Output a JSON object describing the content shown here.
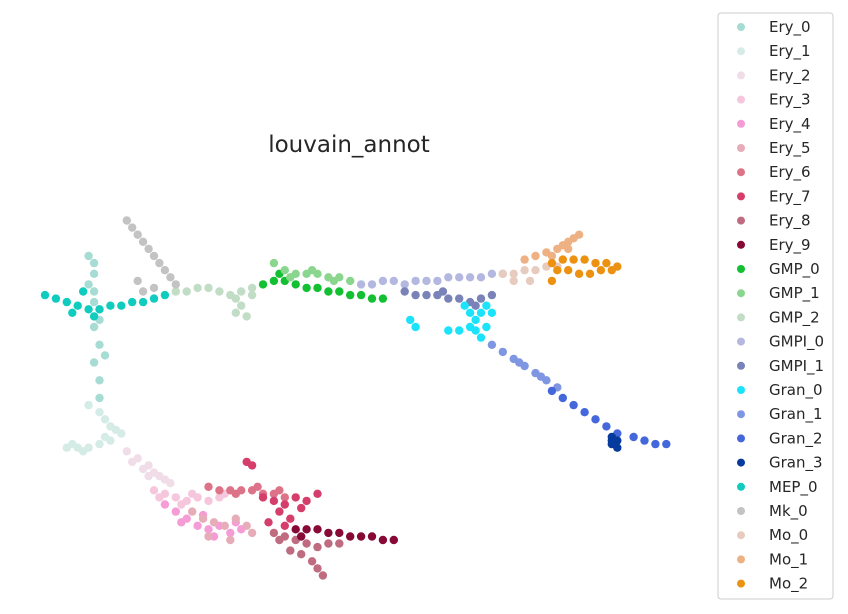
{
  "chart_data": {
    "type": "scatter",
    "title": "louvain_annot",
    "xlabel": "",
    "ylabel": "",
    "grid": false,
    "axes_visible": false,
    "legend_position": "right",
    "series": [
      {
        "name": "Ery_0",
        "color": "#a6dcd4",
        "points": [
          [
            8,
            20
          ],
          [
            9,
            25
          ],
          [
            9,
            30
          ],
          [
            10,
            35
          ],
          [
            9,
            40
          ],
          [
            10,
            45
          ],
          [
            9,
            50
          ],
          [
            10,
            55
          ],
          [
            8,
            28
          ],
          [
            10,
            38
          ],
          [
            9,
            33
          ],
          [
            11,
            48
          ],
          [
            10,
            60
          ],
          [
            9,
            22
          ]
        ]
      },
      {
        "name": "Ery_1",
        "color": "#d4ebe6",
        "points": [
          [
            8,
            62
          ],
          [
            10,
            64
          ],
          [
            11,
            66
          ],
          [
            12,
            68
          ],
          [
            14,
            70
          ],
          [
            12,
            72
          ],
          [
            10,
            73
          ],
          [
            8,
            74
          ],
          [
            6,
            74
          ],
          [
            4,
            74
          ],
          [
            5,
            73
          ],
          [
            13,
            69
          ],
          [
            11,
            71
          ],
          [
            7,
            75
          ]
        ]
      },
      {
        "name": "Ery_2",
        "color": "#f0dde8",
        "points": [
          [
            15,
            75
          ],
          [
            17,
            77
          ],
          [
            19,
            79
          ],
          [
            20,
            81
          ],
          [
            22,
            83
          ],
          [
            18,
            80
          ],
          [
            16,
            78
          ],
          [
            21,
            82
          ],
          [
            23,
            84
          ],
          [
            19,
            82
          ]
        ]
      },
      {
        "name": "Ery_3",
        "color": "#f5c6dc",
        "points": [
          [
            20,
            86
          ],
          [
            22,
            87
          ],
          [
            24,
            88
          ],
          [
            26,
            89
          ],
          [
            28,
            88
          ],
          [
            30,
            89
          ],
          [
            32,
            88
          ],
          [
            25,
            90
          ],
          [
            21,
            88
          ],
          [
            27,
            87
          ],
          [
            33,
            87
          ]
        ]
      },
      {
        "name": "Ery_4",
        "color": "#f59cd6",
        "points": [
          [
            22,
            90
          ],
          [
            24,
            92
          ],
          [
            26,
            94
          ],
          [
            28,
            96
          ],
          [
            30,
            97
          ],
          [
            32,
            96
          ],
          [
            34,
            98
          ],
          [
            36,
            97
          ],
          [
            25,
            95
          ],
          [
            29,
            93
          ],
          [
            31,
            99
          ],
          [
            35,
            95
          ]
        ]
      },
      {
        "name": "Ery_5",
        "color": "#e6adb8",
        "points": [
          [
            27,
            92
          ],
          [
            29,
            94
          ],
          [
            31,
            95
          ],
          [
            33,
            96
          ],
          [
            35,
            94
          ],
          [
            37,
            96
          ],
          [
            30,
            99
          ],
          [
            34,
            100
          ],
          [
            38,
            98
          ]
        ]
      },
      {
        "name": "Ery_6",
        "color": "#dc7388",
        "points": [
          [
            30,
            85
          ],
          [
            32,
            86
          ],
          [
            34,
            86
          ],
          [
            36,
            86
          ],
          [
            38,
            86
          ],
          [
            40,
            87
          ],
          [
            42,
            87
          ],
          [
            44,
            88
          ],
          [
            35,
            87
          ],
          [
            39,
            85
          ],
          [
            43,
            86
          ]
        ]
      },
      {
        "name": "Ery_7",
        "color": "#d53d6a",
        "points": [
          [
            40,
            88
          ],
          [
            42,
            89
          ],
          [
            44,
            90
          ],
          [
            46,
            88
          ],
          [
            48,
            89
          ],
          [
            50,
            87
          ],
          [
            43,
            92
          ],
          [
            45,
            94
          ],
          [
            47,
            91
          ],
          [
            41,
            95
          ],
          [
            44,
            96
          ],
          [
            37,
            78
          ],
          [
            38,
            79
          ]
        ]
      },
      {
        "name": "Ery_8",
        "color": "#c06c80",
        "points": [
          [
            42,
            98
          ],
          [
            44,
            99
          ],
          [
            46,
            100
          ],
          [
            48,
            101
          ],
          [
            50,
            102
          ],
          [
            52,
            101
          ],
          [
            54,
            101
          ],
          [
            45,
            103
          ],
          [
            47,
            104
          ],
          [
            49,
            106
          ],
          [
            50,
            108
          ],
          [
            51,
            110
          ],
          [
            43,
            100
          ]
        ]
      },
      {
        "name": "Ery_9",
        "color": "#870936",
        "points": [
          [
            46,
            97
          ],
          [
            48,
            97
          ],
          [
            50,
            97
          ],
          [
            52,
            98
          ],
          [
            54,
            98
          ],
          [
            56,
            99
          ],
          [
            58,
            99
          ],
          [
            60,
            99
          ],
          [
            62,
            100
          ],
          [
            64,
            100
          ],
          [
            47,
            99
          ]
        ]
      },
      {
        "name": "GMP_0",
        "color": "#12c032",
        "points": [
          [
            40,
            28
          ],
          [
            42,
            27
          ],
          [
            44,
            27
          ],
          [
            46,
            28
          ],
          [
            48,
            29
          ],
          [
            50,
            29
          ],
          [
            52,
            30
          ],
          [
            54,
            30
          ],
          [
            56,
            31
          ],
          [
            58,
            31
          ],
          [
            60,
            32
          ],
          [
            62,
            32
          ],
          [
            43,
            25
          ]
        ]
      },
      {
        "name": "GMP_1",
        "color": "#8ad68e",
        "points": [
          [
            42,
            22
          ],
          [
            44,
            24
          ],
          [
            46,
            25
          ],
          [
            48,
            25
          ],
          [
            50,
            25
          ],
          [
            52,
            26
          ],
          [
            54,
            26
          ],
          [
            56,
            27
          ],
          [
            45,
            26
          ],
          [
            49,
            24
          ],
          [
            53,
            27
          ]
        ]
      },
      {
        "name": "GMP_2",
        "color": "#c2ddc6",
        "points": [
          [
            24,
            30
          ],
          [
            26,
            30
          ],
          [
            28,
            29
          ],
          [
            30,
            29
          ],
          [
            32,
            30
          ],
          [
            34,
            31
          ],
          [
            36,
            30
          ],
          [
            38,
            29
          ],
          [
            35,
            32
          ],
          [
            36,
            34
          ],
          [
            37,
            37
          ],
          [
            35,
            36
          ],
          [
            38,
            31
          ]
        ]
      },
      {
        "name": "GMPI_0",
        "color": "#b4b7e0",
        "points": [
          [
            58,
            28
          ],
          [
            60,
            28
          ],
          [
            62,
            27
          ],
          [
            64,
            27
          ],
          [
            66,
            28
          ],
          [
            68,
            27
          ],
          [
            70,
            27
          ],
          [
            72,
            27
          ],
          [
            74,
            26
          ],
          [
            76,
            26
          ],
          [
            78,
            26
          ],
          [
            80,
            26
          ],
          [
            82,
            25
          ],
          [
            84,
            25
          ]
        ]
      },
      {
        "name": "GMPI_1",
        "color": "#7a83b8",
        "points": [
          [
            66,
            30
          ],
          [
            68,
            31
          ],
          [
            70,
            31
          ],
          [
            72,
            31
          ],
          [
            74,
            32
          ],
          [
            76,
            32
          ],
          [
            78,
            33
          ],
          [
            80,
            32
          ],
          [
            82,
            31
          ],
          [
            73,
            30
          ],
          [
            79,
            34
          ]
        ]
      },
      {
        "name": "Gran_0",
        "color": "#1be3fb",
        "points": [
          [
            77,
            34
          ],
          [
            78,
            36
          ],
          [
            79,
            38
          ],
          [
            80,
            36
          ],
          [
            81,
            34
          ],
          [
            82,
            36
          ],
          [
            79,
            41
          ],
          [
            80,
            43
          ],
          [
            81,
            40
          ],
          [
            78,
            40
          ],
          [
            76,
            41
          ],
          [
            74,
            41
          ],
          [
            67,
            38
          ],
          [
            68,
            40
          ]
        ]
      },
      {
        "name": "Gran_1",
        "color": "#7f96e2",
        "points": [
          [
            82,
            45
          ],
          [
            84,
            47
          ],
          [
            86,
            49
          ],
          [
            88,
            51
          ],
          [
            90,
            53
          ],
          [
            92,
            55
          ],
          [
            94,
            57
          ],
          [
            91,
            54
          ],
          [
            87,
            50
          ]
        ]
      },
      {
        "name": "Gran_2",
        "color": "#4467dc",
        "points": [
          [
            93,
            58
          ],
          [
            95,
            60
          ],
          [
            97,
            62
          ],
          [
            99,
            64
          ],
          [
            101,
            66
          ],
          [
            103,
            68
          ],
          [
            105,
            70
          ],
          [
            108,
            71
          ],
          [
            110,
            72
          ],
          [
            112,
            73
          ],
          [
            114,
            73
          ]
        ]
      },
      {
        "name": "Gran_3",
        "color": "#063b9e",
        "points": [
          [
            104,
            71
          ],
          [
            105,
            72
          ],
          [
            104,
            73
          ],
          [
            105,
            74
          ],
          [
            104,
            72
          ]
        ]
      },
      {
        "name": "MEP_0",
        "color": "#10ccbf",
        "points": [
          [
            0,
            31
          ],
          [
            2,
            32
          ],
          [
            4,
            33
          ],
          [
            6,
            34
          ],
          [
            8,
            35
          ],
          [
            10,
            35
          ],
          [
            12,
            34
          ],
          [
            14,
            34
          ],
          [
            16,
            33
          ],
          [
            18,
            33
          ],
          [
            20,
            32
          ],
          [
            22,
            31
          ],
          [
            5,
            36
          ],
          [
            9,
            37
          ],
          [
            7,
            30
          ]
        ]
      },
      {
        "name": "Mk_0",
        "color": "#c3c3c3",
        "points": [
          [
            15,
            10
          ],
          [
            16,
            12
          ],
          [
            17,
            14
          ],
          [
            18,
            16
          ],
          [
            19,
            18
          ],
          [
            20,
            20
          ],
          [
            21,
            22
          ],
          [
            22,
            24
          ],
          [
            23,
            26
          ],
          [
            24,
            28
          ],
          [
            20,
            29
          ],
          [
            18,
            30
          ],
          [
            17,
            27
          ]
        ]
      },
      {
        "name": "Mo_0",
        "color": "#e8cbbf",
        "points": [
          [
            84,
            25
          ],
          [
            86,
            25
          ],
          [
            88,
            24
          ],
          [
            90,
            24
          ],
          [
            92,
            23
          ],
          [
            94,
            23
          ],
          [
            86,
            27
          ],
          [
            89,
            27
          ]
        ]
      },
      {
        "name": "Mo_1",
        "color": "#edb184",
        "points": [
          [
            88,
            21
          ],
          [
            90,
            20
          ],
          [
            92,
            19
          ],
          [
            94,
            18
          ],
          [
            95,
            17
          ],
          [
            96,
            16
          ],
          [
            97,
            15
          ],
          [
            98,
            14
          ],
          [
            93,
            20
          ],
          [
            96,
            18
          ]
        ]
      },
      {
        "name": "Mo_2",
        "color": "#ed9110",
        "points": [
          [
            93,
            22
          ],
          [
            95,
            21
          ],
          [
            97,
            21
          ],
          [
            99,
            21
          ],
          [
            101,
            22
          ],
          [
            103,
            22
          ],
          [
            105,
            23
          ],
          [
            94,
            24
          ],
          [
            96,
            24
          ],
          [
            98,
            25
          ],
          [
            100,
            25
          ],
          [
            102,
            24
          ],
          [
            104,
            24
          ],
          [
            93,
            27
          ]
        ]
      }
    ]
  }
}
